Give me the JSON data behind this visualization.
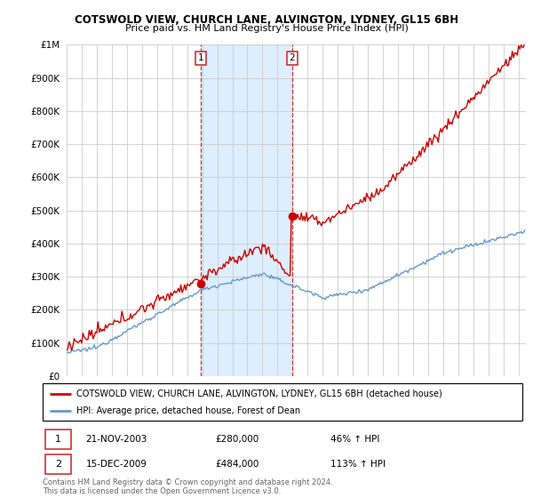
{
  "title": "COTSWOLD VIEW, CHURCH LANE, ALVINGTON, LYDNEY, GL15 6BH",
  "subtitle": "Price paid vs. HM Land Registry's House Price Index (HPI)",
  "ytick_values": [
    0,
    100000,
    200000,
    300000,
    400000,
    500000,
    600000,
    700000,
    800000,
    900000,
    1000000
  ],
  "ylim": [
    0,
    1000000
  ],
  "xlim_start": 1995.0,
  "xlim_end": 2025.5,
  "sale1_x": 2003.9,
  "sale1_y": 280000,
  "sale2_x": 2009.96,
  "sale2_y": 484000,
  "sale1_date": "21-NOV-2003",
  "sale1_price": "£280,000",
  "sale1_hpi": "46% ↑ HPI",
  "sale2_date": "15-DEC-2009",
  "sale2_price": "£484,000",
  "sale2_hpi": "113% ↑ HPI",
  "red_color": "#cc0000",
  "blue_color": "#6699cc",
  "highlight_color": "#ddeeff",
  "vline_color": "#cc3333",
  "grid_color": "#cccccc",
  "legend_label_red": "COTSWOLD VIEW, CHURCH LANE, ALVINGTON, LYDNEY, GL15 6BH (detached house)",
  "legend_label_blue": "HPI: Average price, detached house, Forest of Dean",
  "footer": "Contains HM Land Registry data © Crown copyright and database right 2024.\nThis data is licensed under the Open Government Licence v3.0."
}
